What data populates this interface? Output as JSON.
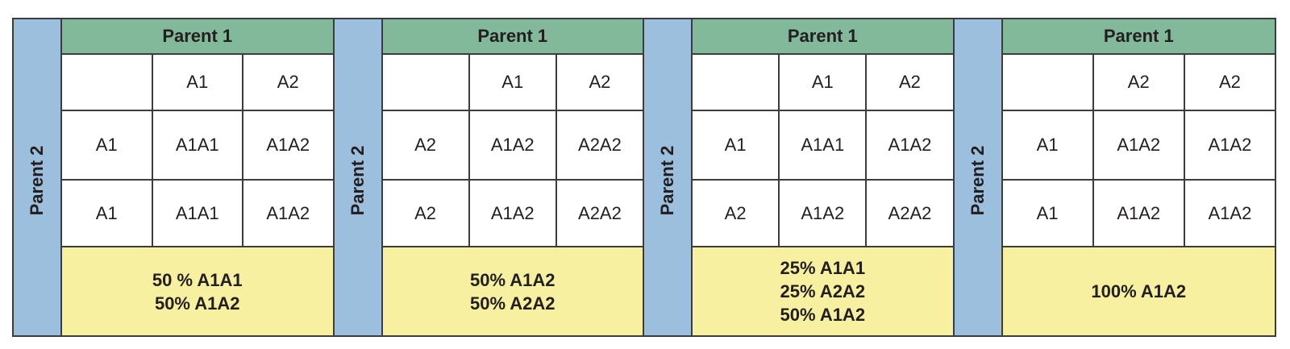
{
  "squares": [
    {
      "parent1_label": "Parent 1",
      "parent2_label": "Parent 2",
      "rows": [
        [
          "",
          "A1",
          "A2"
        ],
        [
          "A1",
          "A1A1",
          "A1A2"
        ],
        [
          "A1",
          "A1A1",
          "A1A2"
        ]
      ],
      "result_lines": [
        "50 % A1A1",
        "50% A1A2"
      ]
    },
    {
      "parent1_label": "Parent 1",
      "parent2_label": "Parent 2",
      "rows": [
        [
          "",
          "A1",
          "A2"
        ],
        [
          "A2",
          "A1A2",
          "A2A2"
        ],
        [
          "A2",
          "A1A2",
          "A2A2"
        ]
      ],
      "result_lines": [
        "50% A1A2",
        "50% A2A2"
      ]
    },
    {
      "parent1_label": "Parent 1",
      "parent2_label": "Parent 2",
      "rows": [
        [
          "",
          "A1",
          "A2"
        ],
        [
          "A1",
          "A1A1",
          "A1A2"
        ],
        [
          "A2",
          "A1A2",
          "A2A2"
        ]
      ],
      "result_lines": [
        "25% A1A1",
        "25% A2A2",
        "50% A1A2"
      ]
    },
    {
      "parent1_label": "Parent 1",
      "parent2_label": "Parent 2",
      "rows": [
        [
          "",
          "A2",
          "A2"
        ],
        [
          "A1",
          "A1A2",
          "A1A2"
        ],
        [
          "A1",
          "A1A2",
          "A1A2"
        ]
      ],
      "result_lines": [
        "100% A1A2"
      ]
    }
  ],
  "colors": {
    "parent1_header": "#82b99a",
    "parent2_bar": "#9cbfde",
    "result_box": "#f7f0a0",
    "border": "#3c3c3c"
  }
}
